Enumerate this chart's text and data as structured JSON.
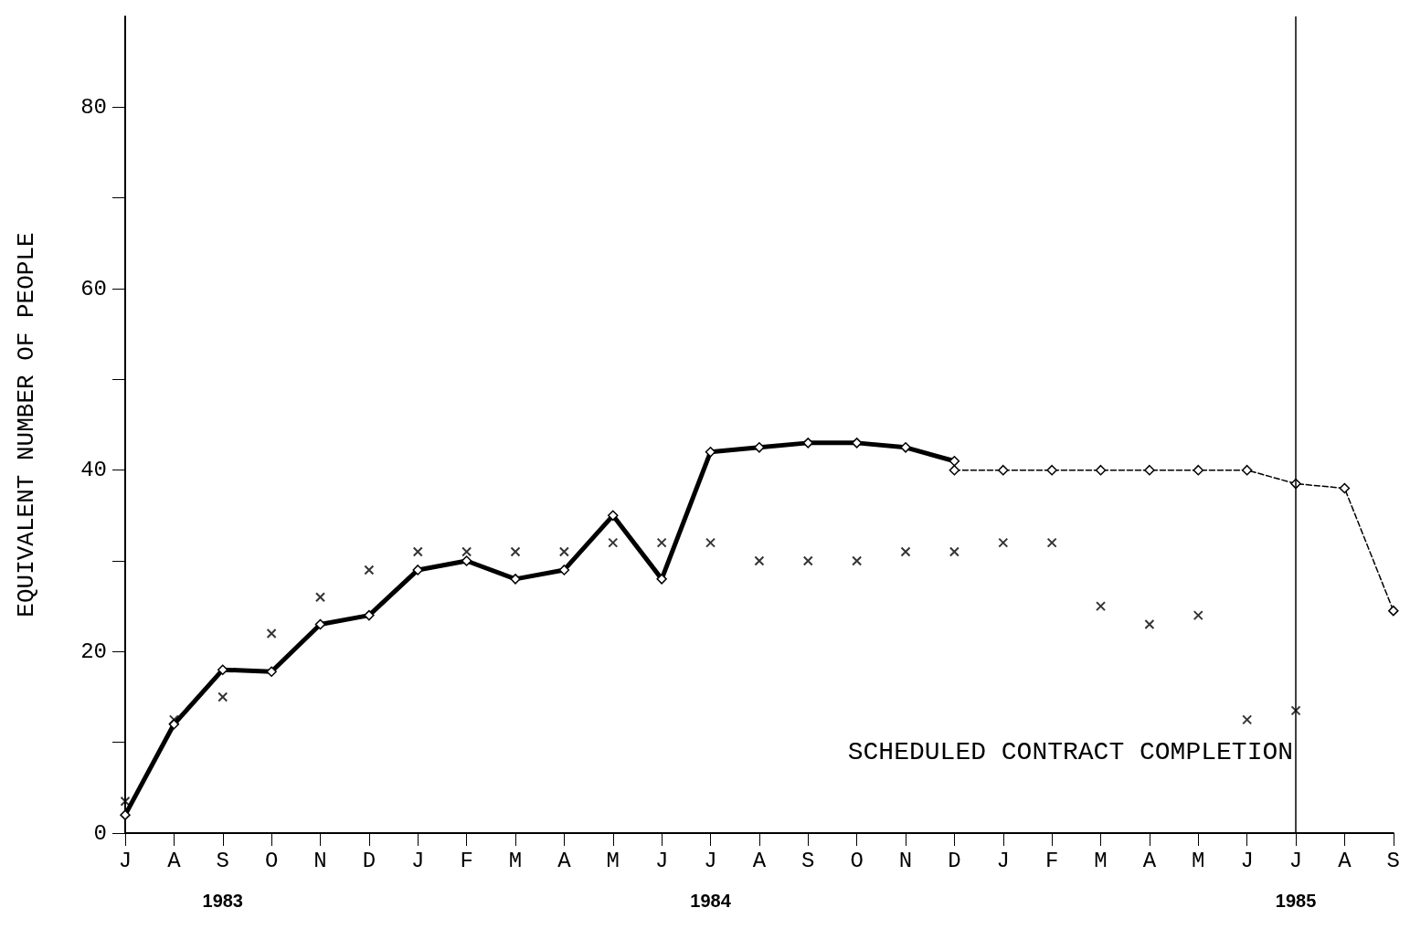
{
  "chart_data": {
    "type": "line",
    "ylabel": "EQUIVALENT NUMBER OF PEOPLE",
    "categories": [
      "J",
      "A",
      "S\n1983",
      "O",
      "N",
      "D",
      "J",
      "F",
      "M",
      "A",
      "M",
      "J",
      "J\n1984",
      "A",
      "S",
      "O",
      "N",
      "D",
      "J",
      "F",
      "M",
      "A",
      "M",
      "J",
      "J\n1985",
      "A",
      "S"
    ],
    "ylim": [
      0,
      90
    ],
    "yticks": [
      0,
      {
        "value": 10,
        "label": null
      },
      20,
      {
        "value": 30,
        "label": null
      },
      40,
      {
        "value": 50,
        "label": null
      },
      60,
      {
        "value": 70,
        "label": null
      },
      80
    ],
    "grid": false,
    "series": [
      {
        "color": "#000000",
        "marker": "diamond",
        "line_style": "solid",
        "values": [
          2,
          12,
          18,
          17.8,
          23,
          24,
          29,
          30,
          28,
          29,
          35,
          28,
          42,
          42.5,
          43,
          43,
          42.5,
          41,
          null,
          null,
          null,
          null,
          null,
          null,
          null,
          null,
          null
        ]
      },
      {
        "color": "#000000",
        "marker": "diamond",
        "line_style": "dashed",
        "values": [
          null,
          null,
          null,
          null,
          null,
          null,
          null,
          null,
          null,
          null,
          null,
          null,
          null,
          null,
          null,
          null,
          null,
          40,
          40,
          40,
          40,
          40,
          40,
          40,
          38.5,
          38,
          24.5
        ]
      },
      {
        "type": "scatter",
        "color": "#000000",
        "marker": "cross",
        "values": [
          3.5,
          12.5,
          15,
          22,
          26,
          29,
          31,
          31,
          31,
          31,
          32,
          32,
          32,
          30,
          30,
          30,
          31,
          31,
          32,
          32,
          25,
          23,
          24,
          12.5,
          13.5,
          null,
          null
        ]
      }
    ],
    "ref_lines": [
      {
        "axis": "x",
        "value": "J\n1985",
        "label": "SCHEDULED CONTRACT COMPLETION",
        "color": "#000000",
        "line_style": "solid"
      }
    ]
  }
}
